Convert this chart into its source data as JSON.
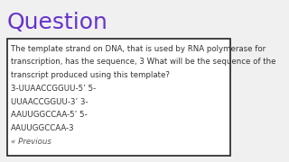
{
  "title": "Question",
  "title_color": "#6633cc",
  "title_fontsize": 18,
  "bg_color": "#f0f0f0",
  "box_bg": "#ffffff",
  "box_edge": "#222222",
  "body_lines": [
    "The template strand on DNA, that is used by RNA polymerase for",
    "transcription, has the sequence, 3 What will be the sequence of the",
    "transcript produced using this template?",
    "3-UUAACCGGUU-5’ 5-",
    "UUAACCGGUU-3’ 3-",
    "AAUUGGCCAA-5’ 5-",
    "AAUUGGCCAA-3",
    "« Previous"
  ],
  "body_fontsize": 6.2,
  "body_color": "#333333",
  "prev_color": "#555555"
}
